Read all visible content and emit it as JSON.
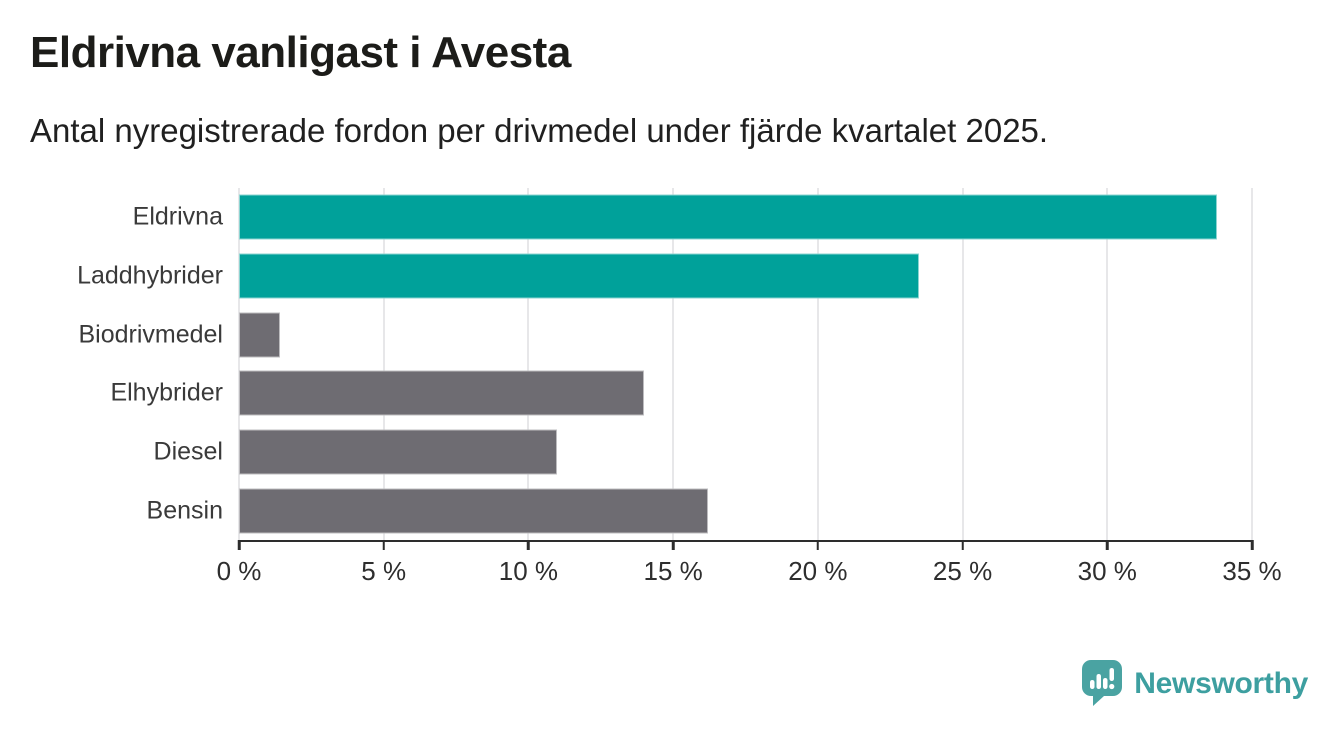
{
  "header": {
    "title": "Eldrivna vanligast i Avesta",
    "subtitle": "Antal nyregistrerade fordon per drivmedel under fjärde kvartalet 2025."
  },
  "chart_data": {
    "type": "bar",
    "orientation": "horizontal",
    "title": "Eldrivna vanligast i Avesta",
    "subtitle": "Antal nyregistrerade fordon per drivmedel under fjärde kvartalet 2025.",
    "categories": [
      "Eldrivna",
      "Laddhybrider",
      "Biodrivmedel",
      "Elhybrider",
      "Diesel",
      "Bensin"
    ],
    "values": [
      33.8,
      23.5,
      1.4,
      14.0,
      11.0,
      16.2
    ],
    "unit": "%",
    "xlabel": "",
    "ylabel": "",
    "xlim": [
      0,
      35
    ],
    "x_ticks": [
      0,
      5,
      10,
      15,
      20,
      25,
      30,
      35
    ],
    "x_tick_labels": [
      "0 %",
      "5 %",
      "10 %",
      "15 %",
      "20 %",
      "25 %",
      "30 %",
      "35 %"
    ],
    "grid": true,
    "legend": false,
    "bar_colors": [
      "#00a19a",
      "#00a19a",
      "#6e6c72",
      "#6e6c72",
      "#6e6c72",
      "#6e6c72"
    ],
    "highlight_color": "#00a19a",
    "base_color": "#6e6c72",
    "gridline_color": "#e7e7e9",
    "axis_color": "#2d2d2d"
  },
  "footer": {
    "brand": "Newsworthy",
    "brand_color": "#3d9fa0",
    "logo_icon": "newsworthy-badge-barchart-exclamation"
  }
}
